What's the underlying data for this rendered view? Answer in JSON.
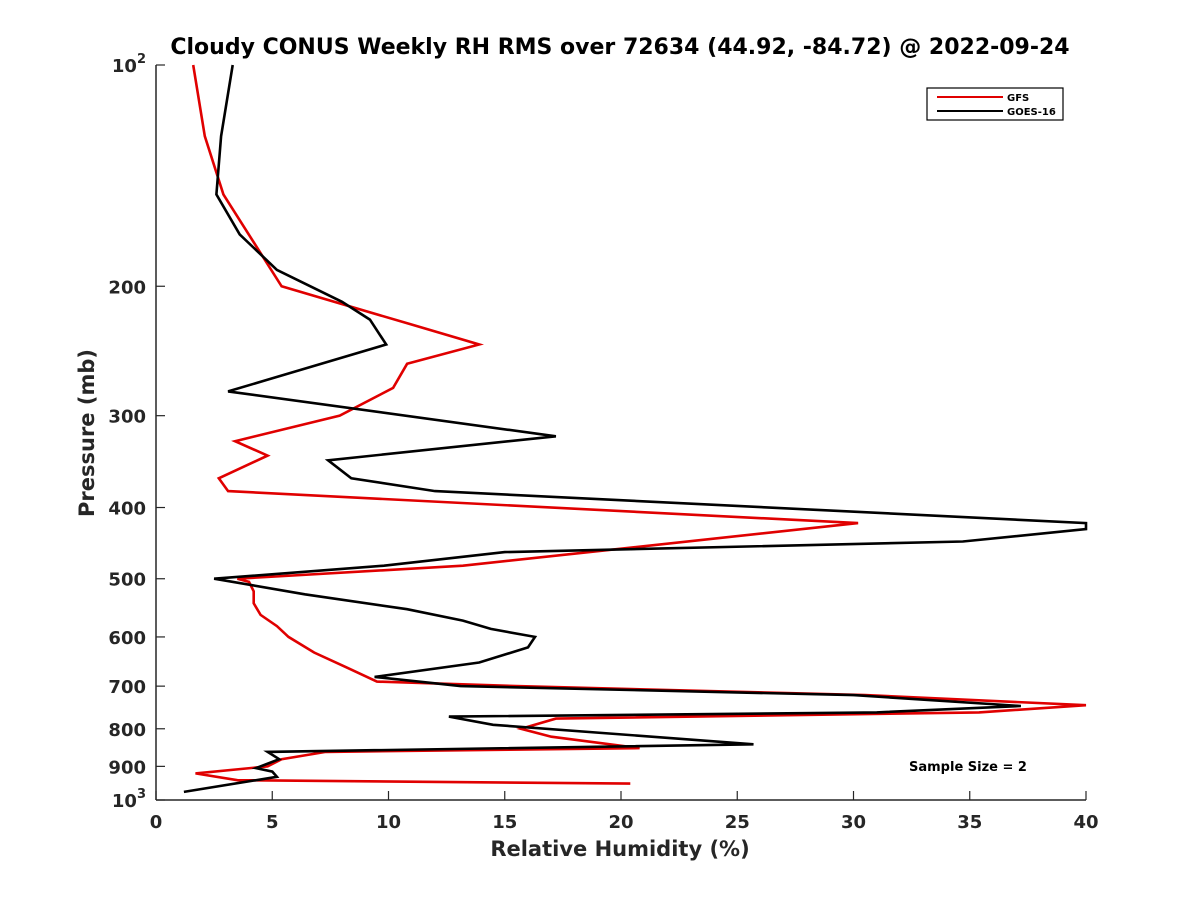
{
  "chart_data": {
    "type": "line",
    "title": "Cloudy CONUS Weekly RH RMS over 72634 (44.92, -84.72) @ 2022-09-24",
    "xlabel": "Relative Humidity (%)",
    "ylabel": "Pressure (mb)",
    "xlim": [
      0,
      40
    ],
    "ylim": [
      100,
      1000
    ],
    "yscale": "log",
    "y_reversed": true,
    "grid": false,
    "legend_position": "top-right",
    "x_ticks": [
      "0",
      "5",
      "10",
      "15",
      "20",
      "25",
      "30",
      "35",
      "40"
    ],
    "y_ticks": [
      {
        "value": 100,
        "base": "10",
        "exp": "2"
      },
      {
        "value": 200,
        "label": "200"
      },
      {
        "value": 300,
        "label": "300"
      },
      {
        "value": 400,
        "label": "400"
      },
      {
        "value": 500,
        "label": "500"
      },
      {
        "value": 600,
        "label": "600"
      },
      {
        "value": 700,
        "label": "700"
      },
      {
        "value": 800,
        "label": "800"
      },
      {
        "value": 900,
        "label": "900"
      },
      {
        "value": 1000,
        "base": "10",
        "exp": "3"
      }
    ],
    "annotation": "Sample Size = 2",
    "series": [
      {
        "name": "GFS",
        "color": "#e00000",
        "points": [
          [
            1.6,
            100
          ],
          [
            2.1,
            125
          ],
          [
            2.9,
            150
          ],
          [
            5.4,
            200
          ],
          [
            10.9,
            225
          ],
          [
            13.9,
            240
          ],
          [
            10.8,
            255
          ],
          [
            10.2,
            275
          ],
          [
            7.9,
            300
          ],
          [
            3.4,
            325
          ],
          [
            4.8,
            340
          ],
          [
            2.7,
            365
          ],
          [
            3.1,
            380
          ],
          [
            30.2,
            420
          ],
          [
            13.2,
            480
          ],
          [
            3.5,
            500
          ],
          [
            4.0,
            505
          ],
          [
            4.2,
            520
          ],
          [
            4.2,
            540
          ],
          [
            4.5,
            560
          ],
          [
            5.2,
            580
          ],
          [
            5.7,
            600
          ],
          [
            6.8,
            630
          ],
          [
            8.2,
            660
          ],
          [
            9.5,
            690
          ],
          [
            15.5,
            700
          ],
          [
            30.5,
            720
          ],
          [
            40.0,
            743
          ],
          [
            35.4,
            760
          ],
          [
            17.2,
            775
          ],
          [
            15.7,
            800
          ],
          [
            17.0,
            820
          ],
          [
            20.8,
            850
          ],
          [
            7.3,
            860
          ],
          [
            5.4,
            880
          ],
          [
            4.8,
            900
          ],
          [
            1.7,
            920
          ],
          [
            3.5,
            940
          ],
          [
            20.4,
            950
          ]
        ]
      },
      {
        "name": "GOES-16",
        "color": "#000000",
        "points": [
          [
            3.3,
            100
          ],
          [
            2.8,
            125
          ],
          [
            2.6,
            150
          ],
          [
            3.6,
            170
          ],
          [
            5.2,
            190
          ],
          [
            8.0,
            210
          ],
          [
            9.2,
            222
          ],
          [
            9.9,
            240
          ],
          [
            3.1,
            278
          ],
          [
            17.2,
            320
          ],
          [
            7.4,
            345
          ],
          [
            8.4,
            365
          ],
          [
            12.0,
            380
          ],
          [
            40.0,
            420
          ],
          [
            40.0,
            428
          ],
          [
            34.7,
            445
          ],
          [
            15.0,
            460
          ],
          [
            9.8,
            480
          ],
          [
            2.5,
            500
          ],
          [
            6.4,
            525
          ],
          [
            10.8,
            550
          ],
          [
            13.2,
            570
          ],
          [
            14.4,
            585
          ],
          [
            16.3,
            600
          ],
          [
            16.0,
            620
          ],
          [
            13.9,
            650
          ],
          [
            9.4,
            680
          ],
          [
            13.1,
            700
          ],
          [
            30.0,
            720
          ],
          [
            37.2,
            745
          ],
          [
            31.0,
            760
          ],
          [
            12.6,
            770
          ],
          [
            14.5,
            790
          ],
          [
            25.7,
            840
          ],
          [
            4.8,
            860
          ],
          [
            5.3,
            880
          ],
          [
            4.3,
            905
          ],
          [
            5.0,
            915
          ],
          [
            5.2,
            930
          ],
          [
            1.2,
            975
          ]
        ]
      }
    ]
  }
}
